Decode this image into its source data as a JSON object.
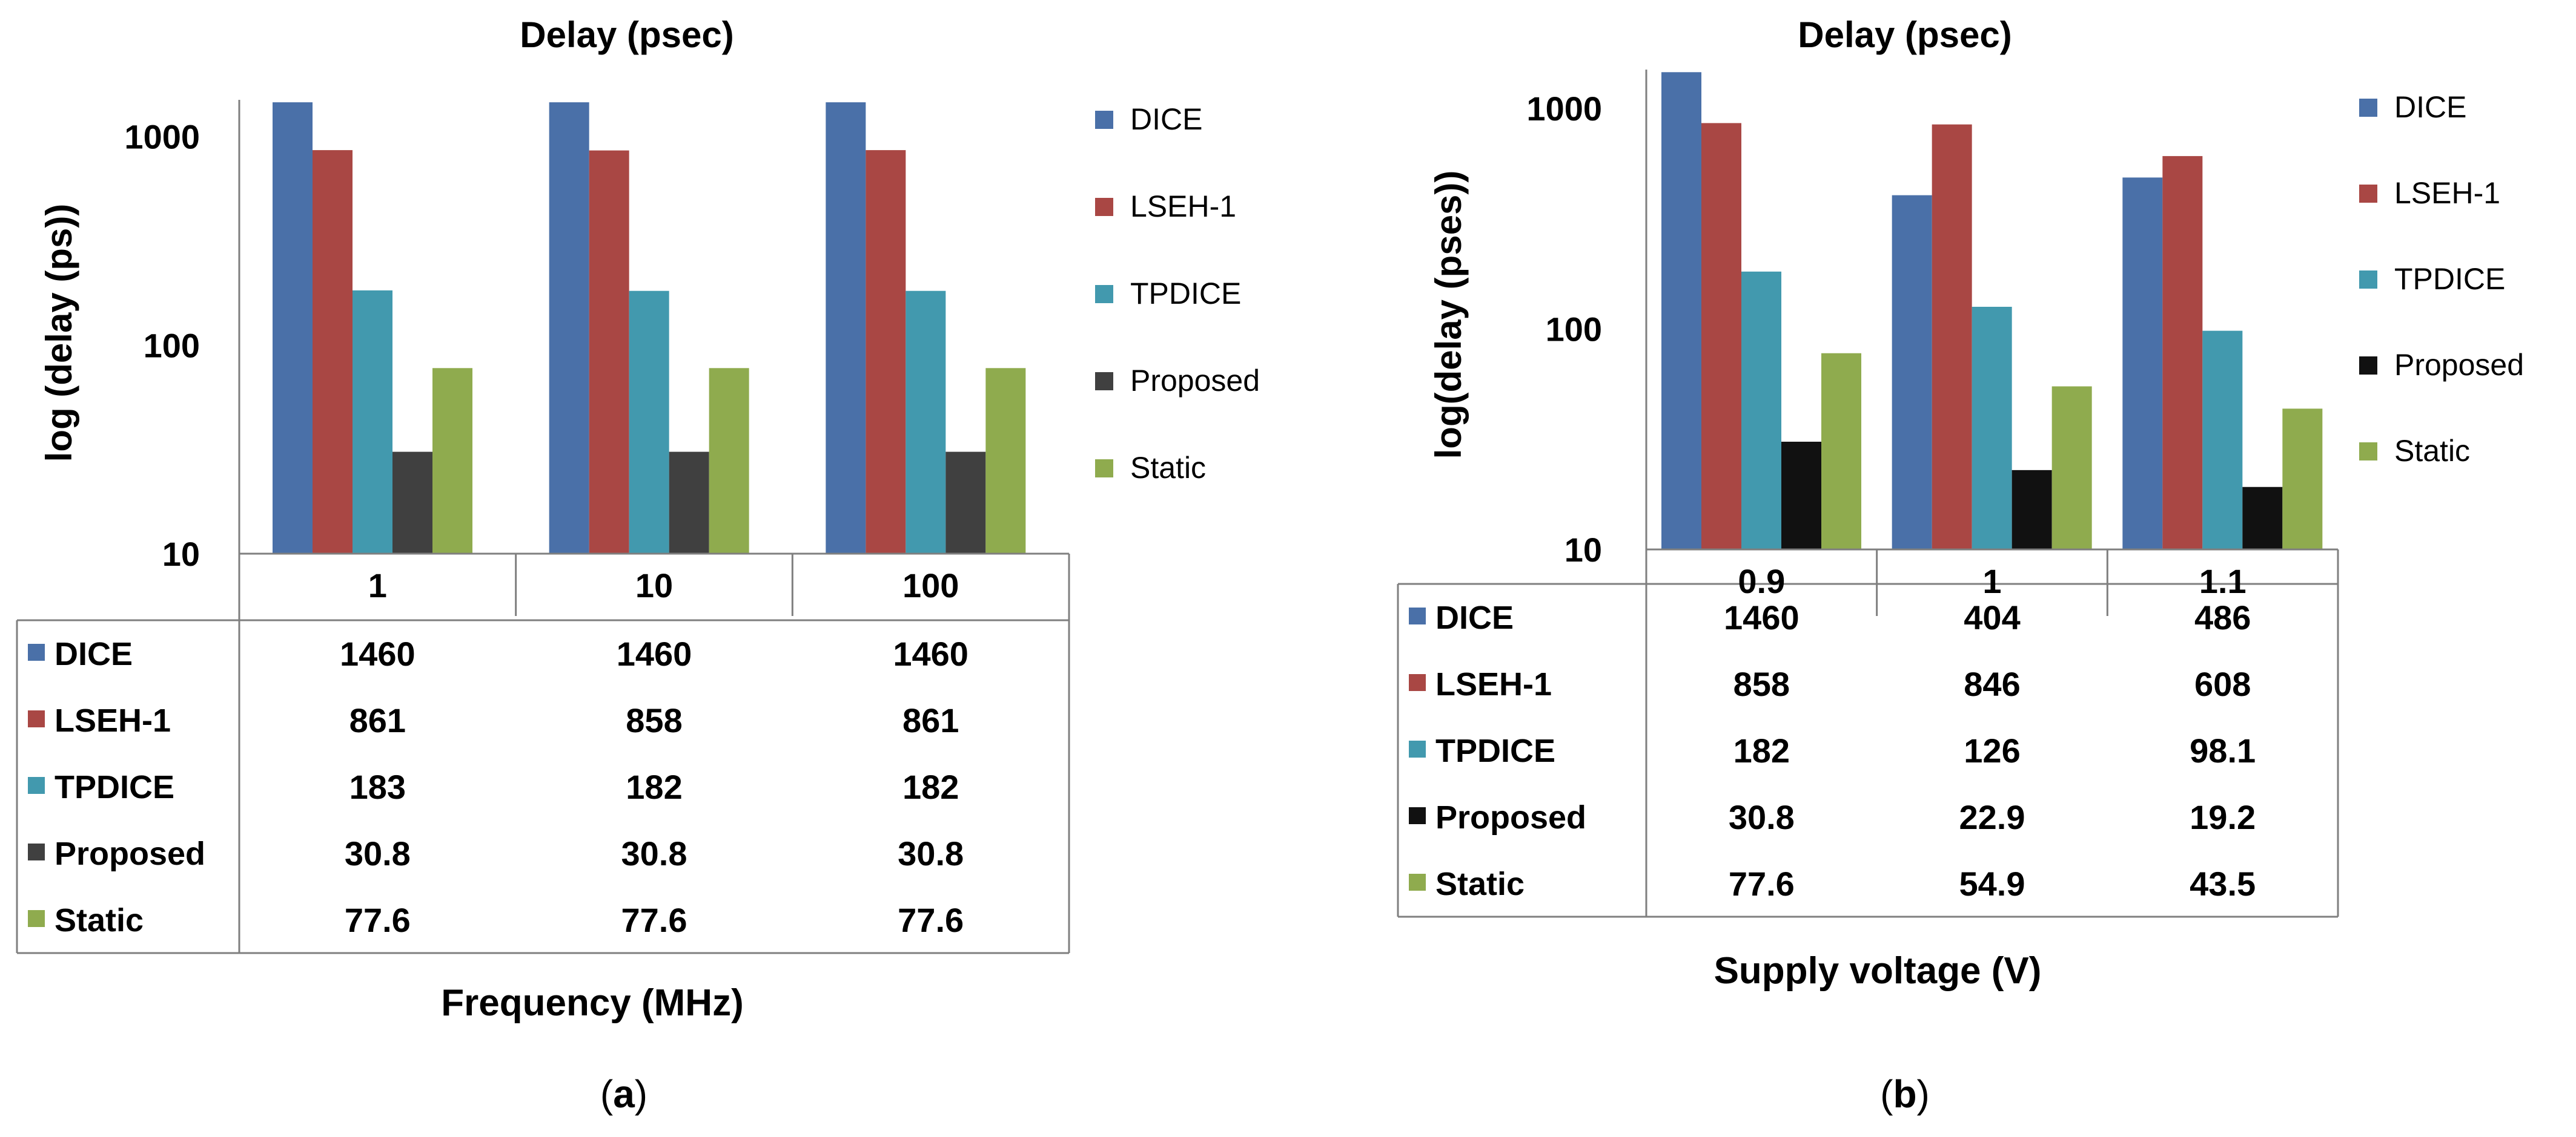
{
  "chart_data": [
    {
      "type": "bar",
      "panel_label": "a",
      "title": "Delay (psec)",
      "ylabel": "log (delay (ps))",
      "xlabel": "Frequency (MHz)",
      "yscale": "log",
      "ylim": [
        10,
        1500
      ],
      "yticks": [
        "10",
        "100",
        "1000"
      ],
      "categories": [
        "1",
        "10",
        "100"
      ],
      "series": [
        {
          "name": "DICE",
          "display": [
            "1460",
            "1460",
            "1460"
          ],
          "values": [
            1460,
            1460,
            1460
          ],
          "color": "#4A70A8"
        },
        {
          "name": "LSEH-1",
          "display": [
            "861",
            "858",
            "861"
          ],
          "values": [
            861,
            858,
            861
          ],
          "color": "#A94744"
        },
        {
          "name": "TPDICE",
          "display": [
            "183",
            "182",
            "182"
          ],
          "values": [
            183,
            182,
            182
          ],
          "color": "#4299AE"
        },
        {
          "name": "Proposed",
          "display": [
            "30.8",
            "30.8",
            "30.8"
          ],
          "values": [
            30.8,
            30.8,
            30.8
          ],
          "color": "#404040"
        },
        {
          "name": "Static",
          "display": [
            "77.6",
            "77.6",
            "77.6"
          ],
          "values": [
            77.6,
            77.6,
            77.6
          ],
          "color": "#8FAB4E"
        }
      ]
    },
    {
      "type": "bar",
      "panel_label": "b",
      "title": "Delay (psec)",
      "ylabel": "log(delay (pses))",
      "xlabel": "Supply voltage (V)",
      "yscale": "log",
      "ylim": [
        10,
        1500
      ],
      "yticks": [
        "10",
        "100",
        "1000"
      ],
      "categories": [
        "0.9",
        "1",
        "1.1"
      ],
      "series": [
        {
          "name": "DICE",
          "display": [
            "1460",
            "404",
            "486"
          ],
          "values": [
            1460,
            404,
            486
          ],
          "color": "#4A70A8"
        },
        {
          "name": "LSEH-1",
          "display": [
            "858",
            "846",
            "608"
          ],
          "values": [
            858,
            846,
            608
          ],
          "color": "#A94744"
        },
        {
          "name": "TPDICE",
          "display": [
            "182",
            "126",
            "98.1"
          ],
          "values": [
            182,
            126,
            98.1
          ],
          "color": "#4299AE"
        },
        {
          "name": "Proposed",
          "display": [
            "30.8",
            "22.9",
            "19.2"
          ],
          "values": [
            30.8,
            22.9,
            19.2
          ],
          "color": "#111111"
        },
        {
          "name": "Static",
          "display": [
            "77.6",
            "54.9",
            "43.5"
          ],
          "values": [
            77.6,
            54.9,
            43.5
          ],
          "color": "#8FAB4E"
        }
      ]
    }
  ]
}
